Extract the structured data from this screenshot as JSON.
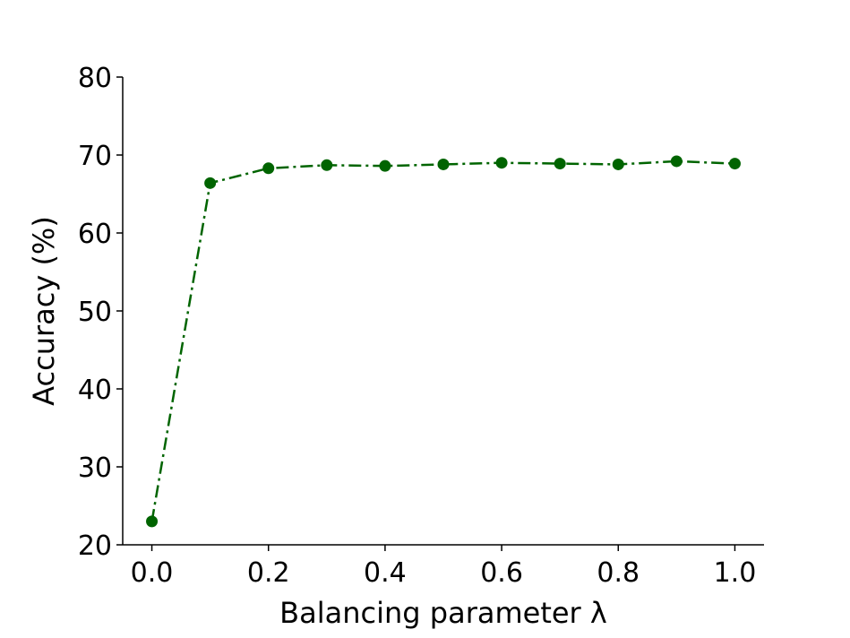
{
  "chart_data": {
    "type": "line",
    "xlabel": "Balancing parameter λ",
    "ylabel": "Accuracy (%)",
    "xlim": [
      -0.05,
      1.05
    ],
    "ylim": [
      20,
      80
    ],
    "x_ticks": [
      "0.0",
      "0.2",
      "0.4",
      "0.6",
      "0.8",
      "1.0"
    ],
    "y_ticks": [
      "20",
      "30",
      "40",
      "50",
      "60",
      "70",
      "80"
    ],
    "grid": false,
    "legend": false,
    "line_style": "dash-dot",
    "marker": "circle",
    "series": [
      {
        "color": "#006400",
        "x": [
          0.0,
          0.1,
          0.2,
          0.3,
          0.4,
          0.5,
          0.6,
          0.7,
          0.8,
          0.9,
          1.0
        ],
        "y": [
          23.0,
          66.4,
          68.3,
          68.7,
          68.6,
          68.8,
          69.0,
          68.9,
          68.8,
          69.2,
          68.9
        ]
      }
    ]
  }
}
